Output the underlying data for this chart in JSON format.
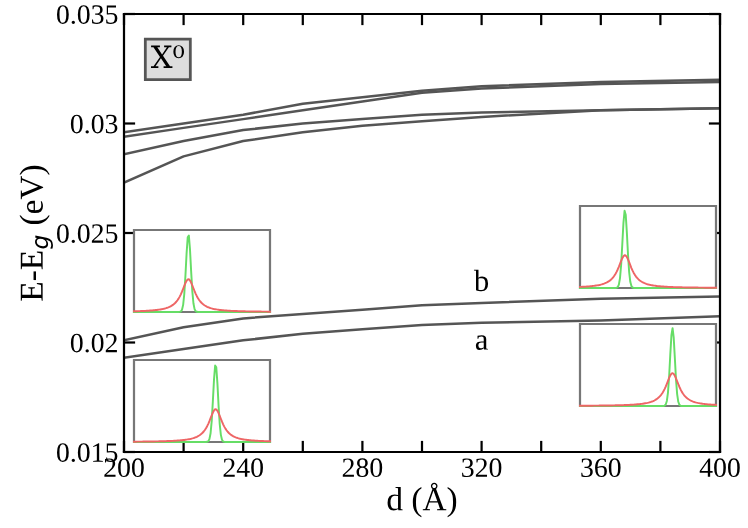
{
  "chart_data": {
    "type": "line",
    "xlabel": "d (Å)",
    "ylabel": "E-E$_{g}$ (eV)",
    "xlim": [
      200,
      400
    ],
    "ylim": [
      0.015,
      0.035
    ],
    "xticks": [
      200,
      {
        "value": 220,
        "label": null
      },
      240,
      {
        "value": 260,
        "label": null
      },
      280,
      {
        "value": 300,
        "label": null
      },
      320,
      {
        "value": 340,
        "label": null
      },
      360,
      {
        "value": 380,
        "label": null
      },
      400
    ],
    "yticks": [
      0.015,
      0.02,
      0.025,
      0.03,
      0.035
    ],
    "x": [
      200,
      220,
      240,
      260,
      280,
      300,
      320,
      360,
      400
    ],
    "series": [
      {
        "color": "#555555",
        "values": [
          0.0296,
          0.03,
          0.0304,
          0.0309,
          0.0312,
          0.0315,
          0.0317,
          0.0319,
          0.032
        ]
      },
      {
        "color": "#555555",
        "values": [
          0.0294,
          0.0298,
          0.0302,
          0.0306,
          0.031,
          0.0314,
          0.0316,
          0.0318,
          0.0319
        ]
      },
      {
        "color": "#555555",
        "values": [
          0.0286,
          0.0292,
          0.0297,
          0.03,
          0.0302,
          0.0304,
          0.0305,
          0.0306,
          0.0307
        ]
      },
      {
        "color": "#555555",
        "values": [
          0.0273,
          0.0285,
          0.0292,
          0.0296,
          0.0299,
          0.0301,
          0.0303,
          0.0306,
          0.0307
        ]
      },
      {
        "name": "b",
        "color": "#555555",
        "values": [
          0.0201,
          0.0207,
          0.0211,
          0.0213,
          0.0215,
          0.0217,
          0.0218,
          0.022,
          0.0221
        ]
      },
      {
        "name": "a",
        "color": "#555555",
        "values": [
          0.0193,
          0.0197,
          0.0201,
          0.0204,
          0.0206,
          0.0208,
          0.0209,
          0.021,
          0.0212
        ]
      }
    ],
    "annotations": [
      "X⁰"
    ],
    "grid": false,
    "legend": false,
    "marker": "none",
    "line_style": "solid"
  }
}
